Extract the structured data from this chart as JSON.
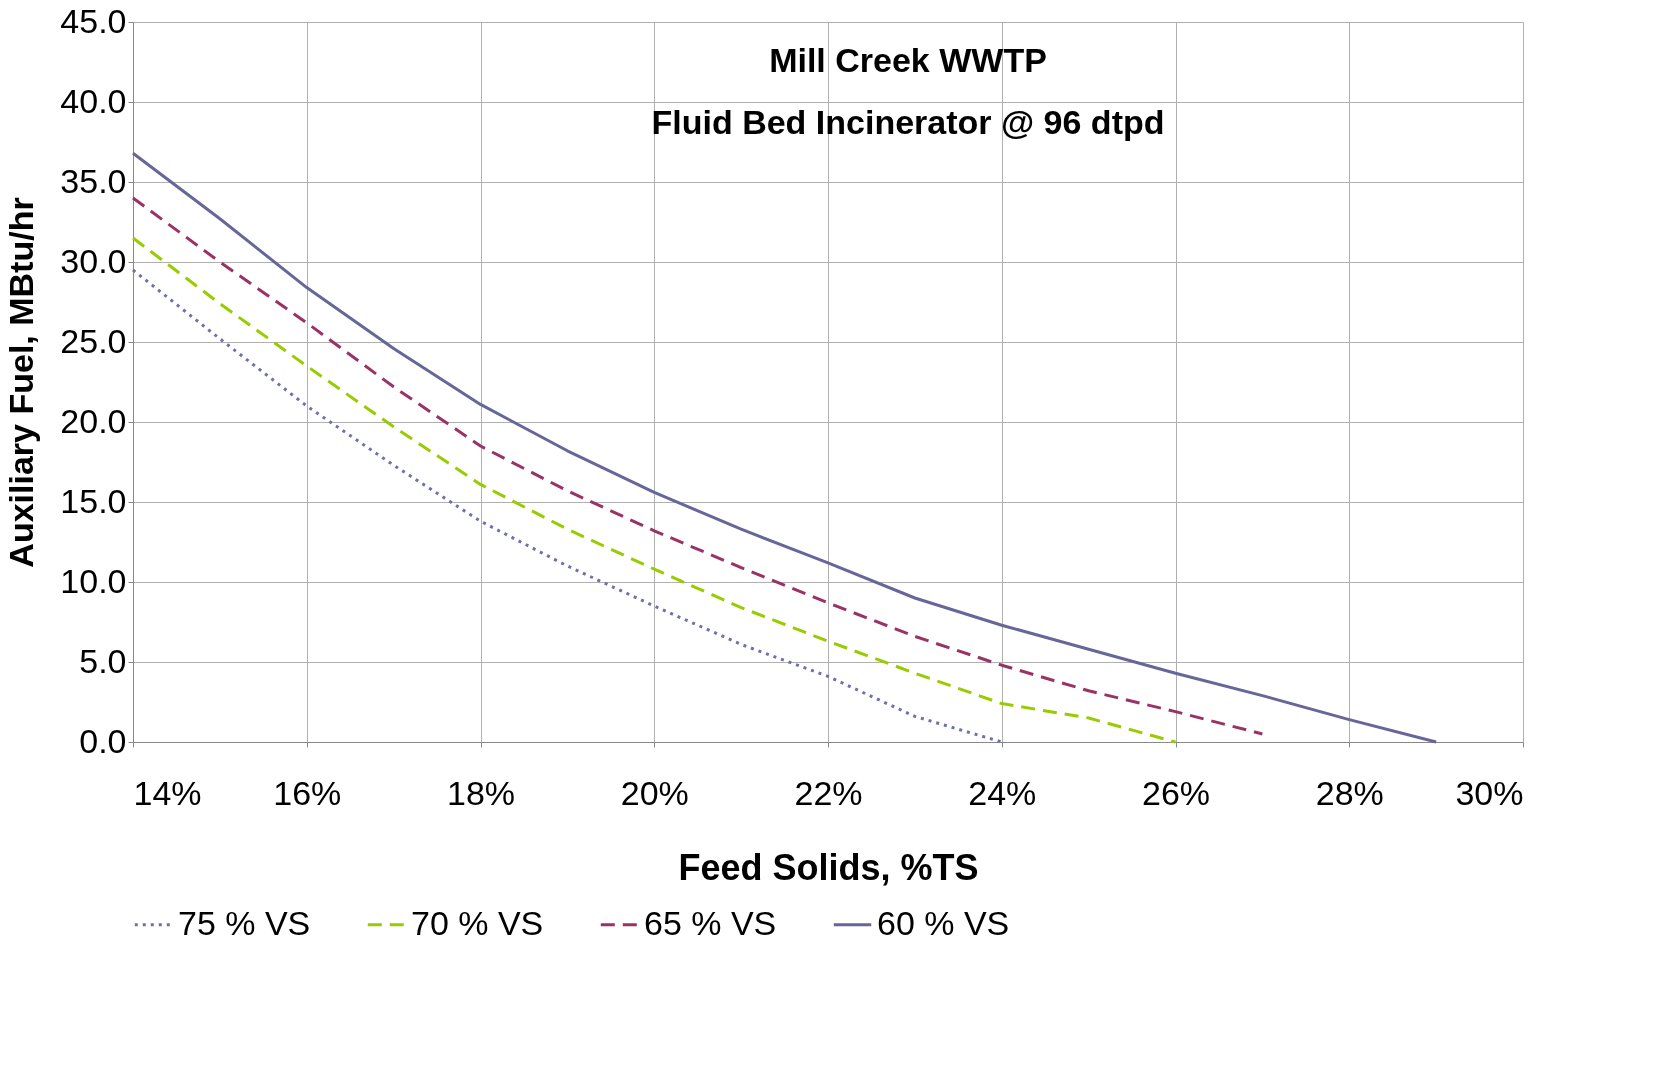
{
  "chart_data": {
    "type": "line",
    "title": [
      "Mill Creek WWTP",
      "Fluid Bed Incinerator @ 96 dtpd"
    ],
    "xlabel": "Feed Solids, %TS",
    "ylabel": "Auxiliary Fuel, MBtu/hr",
    "xlim": [
      14,
      30
    ],
    "xticks": [
      {
        "value": 14,
        "label": "14%"
      },
      {
        "value": 16,
        "label": "16%"
      },
      {
        "value": 18,
        "label": "18%"
      },
      {
        "value": 20,
        "label": "20%"
      },
      {
        "value": 22,
        "label": "22%"
      },
      {
        "value": 24,
        "label": "24%"
      },
      {
        "value": 26,
        "label": "26%"
      },
      {
        "value": 28,
        "label": "28%"
      },
      {
        "value": 30,
        "label": "30%"
      }
    ],
    "ylim": [
      0,
      45
    ],
    "yticks": [
      {
        "value": 0,
        "label": "0.0"
      },
      {
        "value": 5,
        "label": "5.0"
      },
      {
        "value": 10,
        "label": "10.0"
      },
      {
        "value": 15,
        "label": "15.0"
      },
      {
        "value": 20,
        "label": "20.0"
      },
      {
        "value": 25,
        "label": "25.0"
      },
      {
        "value": 30,
        "label": "30.0"
      },
      {
        "value": 35,
        "label": "35.0"
      },
      {
        "value": 40,
        "label": "40.0"
      },
      {
        "value": 45,
        "label": "45.0"
      }
    ],
    "grid": true,
    "legend": "bottom",
    "marker": "none",
    "series": [
      {
        "name": "75 % VS",
        "color": "#6f6fae",
        "line_style": "dotted",
        "x": [
          14,
          15,
          16,
          17,
          18,
          19,
          20,
          21,
          22,
          23,
          24
        ],
        "values": [
          29.5,
          25.2,
          21.0,
          17.3,
          13.8,
          11.0,
          8.5,
          6.1,
          4.1,
          1.6,
          0
        ]
      },
      {
        "name": "70 % VS",
        "color": "#99cc00",
        "line_style": "dashed",
        "x": [
          14,
          15,
          16,
          17,
          18,
          19,
          20,
          21,
          22,
          23,
          24,
          25,
          26
        ],
        "values": [
          31.5,
          27.4,
          23.5,
          19.7,
          16.1,
          13.3,
          10.8,
          8.4,
          6.3,
          4.3,
          2.4,
          1.5,
          0
        ]
      },
      {
        "name": "65 % VS",
        "color": "#993366",
        "line_style": "dashed",
        "x": [
          14,
          15,
          16,
          17,
          18,
          19,
          20,
          21,
          22,
          23,
          24,
          25,
          26,
          27
        ],
        "values": [
          34.0,
          30.0,
          26.2,
          22.2,
          18.5,
          15.7,
          13.2,
          10.9,
          8.7,
          6.6,
          4.8,
          3.2,
          1.9,
          0.5
        ]
      },
      {
        "name": "60 % VS",
        "color": "#666699",
        "line_style": "solid",
        "x": [
          14,
          15,
          16,
          17,
          18,
          19,
          20,
          21,
          22,
          23,
          24,
          25,
          26,
          27,
          28,
          29
        ],
        "values": [
          36.8,
          32.7,
          28.4,
          24.6,
          21.1,
          18.2,
          15.6,
          13.3,
          11.2,
          9.0,
          7.3,
          5.8,
          4.3,
          2.9,
          1.4,
          0
        ]
      }
    ]
  }
}
